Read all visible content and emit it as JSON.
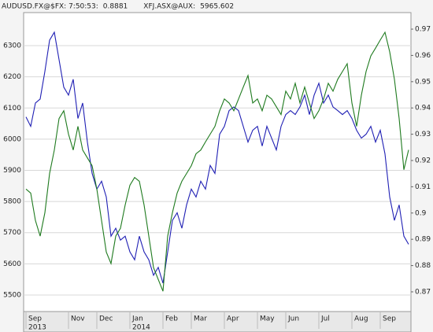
{
  "chart_data": {
    "type": "line",
    "categories": [
      "Sep",
      null,
      null,
      null,
      null,
      null,
      null,
      null,
      null,
      "Nov",
      null,
      null,
      null,
      null,
      null,
      "Dec",
      null,
      null,
      null,
      null,
      null,
      null,
      "Jan",
      null,
      null,
      null,
      null,
      null,
      null,
      "Feb",
      null,
      null,
      null,
      null,
      null,
      "Mar",
      null,
      null,
      null,
      null,
      null,
      null,
      "Apr",
      null,
      null,
      null,
      null,
      null,
      null,
      "May",
      null,
      null,
      null,
      null,
      null,
      "Jun",
      null,
      null,
      null,
      null,
      null,
      null,
      "Jul",
      null,
      null,
      null,
      null,
      null,
      null,
      "Aug",
      null,
      null,
      null,
      null,
      null,
      "Sep",
      null,
      null,
      null,
      null,
      null,
      null
    ],
    "years": [
      "2013",
      null,
      null,
      null,
      null,
      null,
      null,
      null,
      null,
      null,
      null,
      null,
      null,
      null,
      null,
      null,
      null,
      null,
      null,
      null,
      null,
      null,
      "2014",
      null,
      null,
      null,
      null,
      null,
      null,
      null,
      null,
      null,
      null,
      null,
      null,
      null,
      null,
      null,
      null,
      null,
      null,
      null,
      null,
      null,
      null,
      null,
      null,
      null,
      null,
      null,
      null,
      null,
      null,
      null,
      null,
      null,
      null,
      null,
      null,
      null,
      null,
      null,
      null,
      null,
      null,
      null,
      null,
      null,
      null,
      null,
      null,
      null,
      null,
      null,
      null,
      null,
      null,
      null,
      null,
      null,
      null,
      null
    ],
    "series": [
      {
        "name": "AUDUSD.FX@$FX: 7:50:53:",
        "header_value": "0.8881",
        "color": "#1f1fb4",
        "axis": "y2",
        "values": [
          0.9366,
          0.933,
          0.9419,
          0.9434,
          0.9539,
          0.9658,
          0.9688,
          0.9584,
          0.9479,
          0.9449,
          0.9509,
          0.936,
          0.9419,
          0.927,
          0.9151,
          0.9091,
          0.9121,
          0.9061,
          0.8912,
          0.8942,
          0.8897,
          0.8912,
          0.8852,
          0.8822,
          0.8912,
          0.8852,
          0.8822,
          0.8763,
          0.8793,
          0.8733,
          0.8852,
          0.8972,
          0.9001,
          0.8942,
          0.9031,
          0.9091,
          0.9061,
          0.9121,
          0.9091,
          0.9181,
          0.9151,
          0.93,
          0.933,
          0.939,
          0.9404,
          0.939,
          0.933,
          0.927,
          0.9315,
          0.933,
          0.9255,
          0.933,
          0.9285,
          0.924,
          0.933,
          0.9375,
          0.939,
          0.9375,
          0.9404,
          0.9449,
          0.9375,
          0.9449,
          0.9494,
          0.9419,
          0.9449,
          0.9404,
          0.939,
          0.9375,
          0.939,
          0.936,
          0.9315,
          0.9285,
          0.93,
          0.933,
          0.927,
          0.9315,
          0.9225,
          0.9061,
          0.8972,
          0.9031,
          0.8912,
          0.8881
        ]
      },
      {
        "name": "XFJ.ASX@AUX:",
        "header_value": "5965.602",
        "color": "#1e7a1e",
        "values": [
          5840,
          5827,
          5739,
          5689,
          5764,
          5890,
          5965,
          6066,
          6091,
          6016,
          5965,
          6041,
          5965,
          5940,
          5915,
          5840,
          5739,
          5638,
          5601,
          5689,
          5714,
          5789,
          5852,
          5877,
          5865,
          5789,
          5689,
          5588,
          5550,
          5512,
          5689,
          5764,
          5827,
          5865,
          5890,
          5915,
          5953,
          5965,
          5991,
          6016,
          6041,
          6091,
          6129,
          6116,
          6091,
          6129,
          6167,
          6204,
          6116,
          6129,
          6091,
          6141,
          6129,
          6104,
          6079,
          6154,
          6129,
          6179,
          6116,
          6167,
          6116,
          6066,
          6091,
          6129,
          6179,
          6154,
          6192,
          6217,
          6242,
          6116,
          6041,
          6141,
          6217,
          6267,
          6292,
          6318,
          6343,
          6280,
          6192,
          6066,
          5902,
          5965.602
        ]
      }
    ],
    "ylim": [
      5447,
      6406
    ],
    "yticks": [
      5500,
      5600,
      5700,
      5800,
      5900,
      6000,
      6100,
      6200,
      6300
    ],
    "y2lim": [
      0.8625,
      0.9763
    ],
    "y2ticks": [
      0.87,
      0.88,
      0.89,
      0.9,
      0.91,
      0.92,
      0.93,
      0.94,
      0.95,
      0.96,
      0.97
    ],
    "grid": true
  }
}
